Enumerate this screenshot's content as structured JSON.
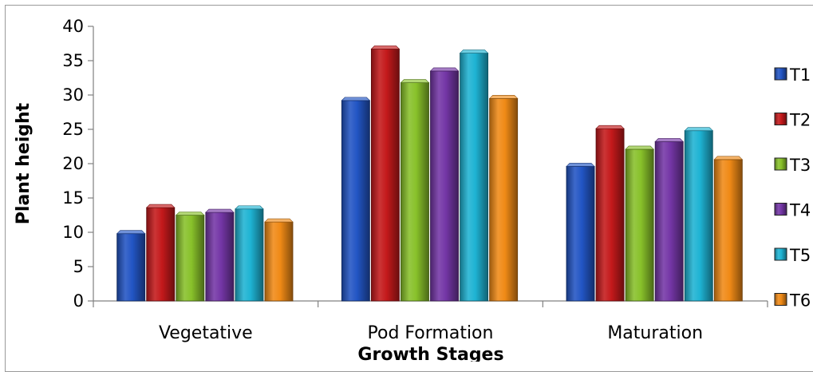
{
  "chart_data": {
    "type": "bar",
    "bar_style": "3d-gradient",
    "title": "",
    "xlabel": "Growth Stages",
    "ylabel": "Plant height",
    "categories": [
      "Vegetative",
      "Pod Formation",
      "Maturation"
    ],
    "ylim": [
      0,
      40
    ],
    "yticks": [
      0,
      5,
      10,
      15,
      20,
      25,
      30,
      35,
      40
    ],
    "grid": false,
    "legend_position": "right",
    "series": [
      {
        "name": "T1",
        "color": "#2255c4",
        "values": [
          9.8,
          29.2,
          19.6
        ]
      },
      {
        "name": "T2",
        "color": "#c4191b",
        "values": [
          13.6,
          36.7,
          25.1
        ]
      },
      {
        "name": "T3",
        "color": "#88c12a",
        "values": [
          12.5,
          31.8,
          22.1
        ]
      },
      {
        "name": "T4",
        "color": "#7436a6",
        "values": [
          12.9,
          33.5,
          23.2
        ]
      },
      {
        "name": "T5",
        "color": "#1eb3d3",
        "values": [
          13.4,
          36.1,
          24.8
        ]
      },
      {
        "name": "T6",
        "color": "#f08a16",
        "values": [
          11.5,
          29.5,
          20.6
        ]
      }
    ]
  }
}
